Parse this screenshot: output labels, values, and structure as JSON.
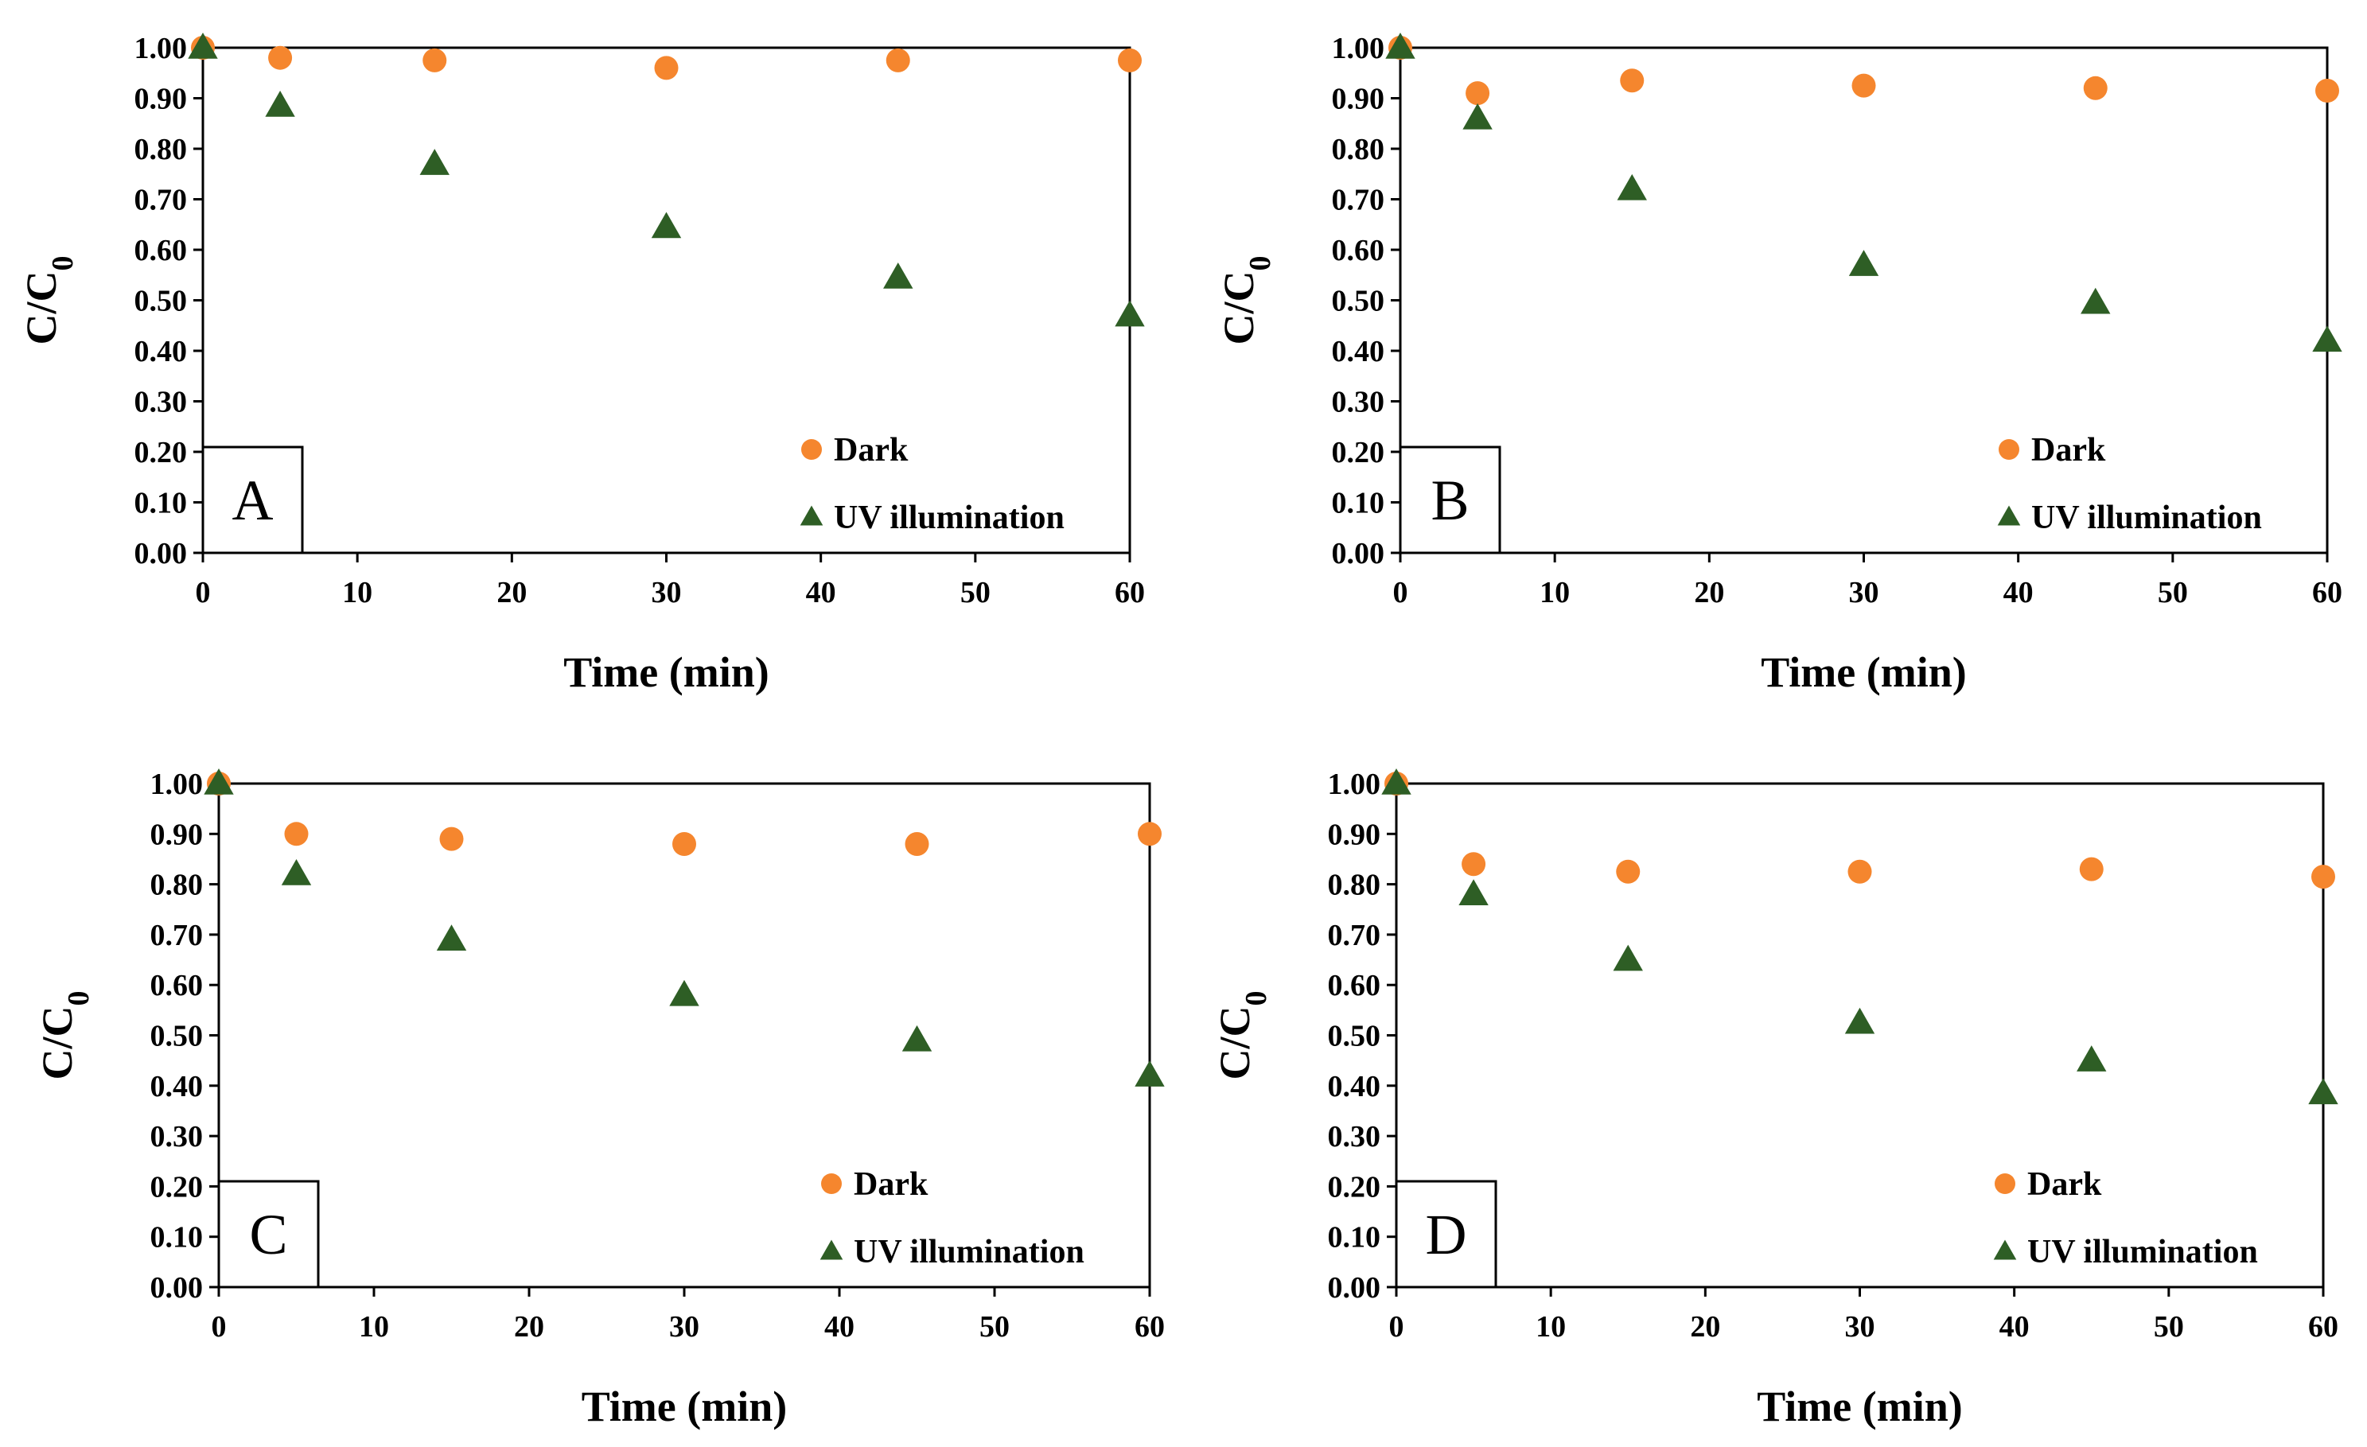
{
  "chart_data": [
    {
      "type": "scatter",
      "panel": "A",
      "xlabel": "Time (min)",
      "ylabel": "C/C0",
      "xlim": [
        0,
        60
      ],
      "ylim": [
        0,
        1
      ],
      "xticks": [
        "0",
        "10",
        "20",
        "30",
        "40",
        "50",
        "60"
      ],
      "yticks": [
        "0.00",
        "0.10",
        "0.20",
        "0.30",
        "0.40",
        "0.50",
        "0.60",
        "0.70",
        "0.80",
        "0.90",
        "1.00"
      ],
      "legend_position": "bottom-right",
      "series": [
        {
          "name": "Dark",
          "marker": "circle",
          "color": "#F5862E",
          "x": [
            0,
            5,
            15,
            30,
            45,
            60
          ],
          "y": [
            1.0,
            0.98,
            0.975,
            0.96,
            0.975,
            0.975
          ]
        },
        {
          "name": "UV illumination",
          "marker": "triangle",
          "color": "#2E5E25",
          "x": [
            0,
            5,
            15,
            30,
            45,
            60
          ],
          "y": [
            1.0,
            0.885,
            0.77,
            0.645,
            0.545,
            0.47
          ]
        }
      ]
    },
    {
      "type": "scatter",
      "panel": "B",
      "xlabel": "Time (min)",
      "ylabel": "C/C0",
      "xlim": [
        0,
        60
      ],
      "ylim": [
        0,
        1
      ],
      "xticks": [
        "0",
        "10",
        "20",
        "30",
        "40",
        "50",
        "60"
      ],
      "yticks": [
        "0.00",
        "0.10",
        "0.20",
        "0.30",
        "0.40",
        "0.50",
        "0.60",
        "0.70",
        "0.80",
        "0.90",
        "1.00"
      ],
      "legend_position": "bottom-right",
      "series": [
        {
          "name": "Dark",
          "marker": "circle",
          "color": "#F5862E",
          "x": [
            0,
            5,
            15,
            30,
            45,
            60
          ],
          "y": [
            1.0,
            0.91,
            0.935,
            0.925,
            0.92,
            0.915
          ]
        },
        {
          "name": "UV illumination",
          "marker": "triangle",
          "color": "#2E5E25",
          "x": [
            0,
            5,
            15,
            30,
            45,
            60
          ],
          "y": [
            1.0,
            0.86,
            0.72,
            0.57,
            0.495,
            0.42
          ]
        }
      ]
    },
    {
      "type": "scatter",
      "panel": "C",
      "xlabel": "Time (min)",
      "ylabel": "C/C0",
      "xlim": [
        0,
        60
      ],
      "ylim": [
        0,
        1
      ],
      "xticks": [
        "0",
        "10",
        "20",
        "30",
        "40",
        "50",
        "60"
      ],
      "yticks": [
        "0.00",
        "0.10",
        "0.20",
        "0.30",
        "0.40",
        "0.50",
        "0.60",
        "0.70",
        "0.80",
        "0.90",
        "1.00"
      ],
      "legend_position": "bottom-right",
      "series": [
        {
          "name": "Dark",
          "marker": "circle",
          "color": "#F5862E",
          "x": [
            0,
            5,
            15,
            30,
            45,
            60
          ],
          "y": [
            1.0,
            0.9,
            0.89,
            0.88,
            0.88,
            0.9
          ]
        },
        {
          "name": "UV illumination",
          "marker": "triangle",
          "color": "#2E5E25",
          "x": [
            0,
            5,
            15,
            30,
            45,
            60
          ],
          "y": [
            1.0,
            0.82,
            0.69,
            0.58,
            0.49,
            0.42
          ]
        }
      ]
    },
    {
      "type": "scatter",
      "panel": "D",
      "xlabel": "Time (min)",
      "ylabel": "C/C0",
      "xlim": [
        0,
        60
      ],
      "ylim": [
        0,
        1
      ],
      "xticks": [
        "0",
        "10",
        "20",
        "30",
        "40",
        "50",
        "60"
      ],
      "yticks": [
        "0.00",
        "0.10",
        "0.20",
        "0.30",
        "0.40",
        "0.50",
        "0.60",
        "0.70",
        "0.80",
        "0.90",
        "1.00"
      ],
      "legend_position": "bottom-right",
      "series": [
        {
          "name": "Dark",
          "marker": "circle",
          "color": "#F5862E",
          "x": [
            0,
            5,
            15,
            30,
            45,
            60
          ],
          "y": [
            1.0,
            0.84,
            0.825,
            0.825,
            0.83,
            0.815
          ]
        },
        {
          "name": "UV illumination",
          "marker": "triangle",
          "color": "#2E5E25",
          "x": [
            0,
            5,
            15,
            30,
            45,
            60
          ],
          "y": [
            1.0,
            0.78,
            0.65,
            0.525,
            0.45,
            0.385
          ]
        }
      ]
    }
  ]
}
